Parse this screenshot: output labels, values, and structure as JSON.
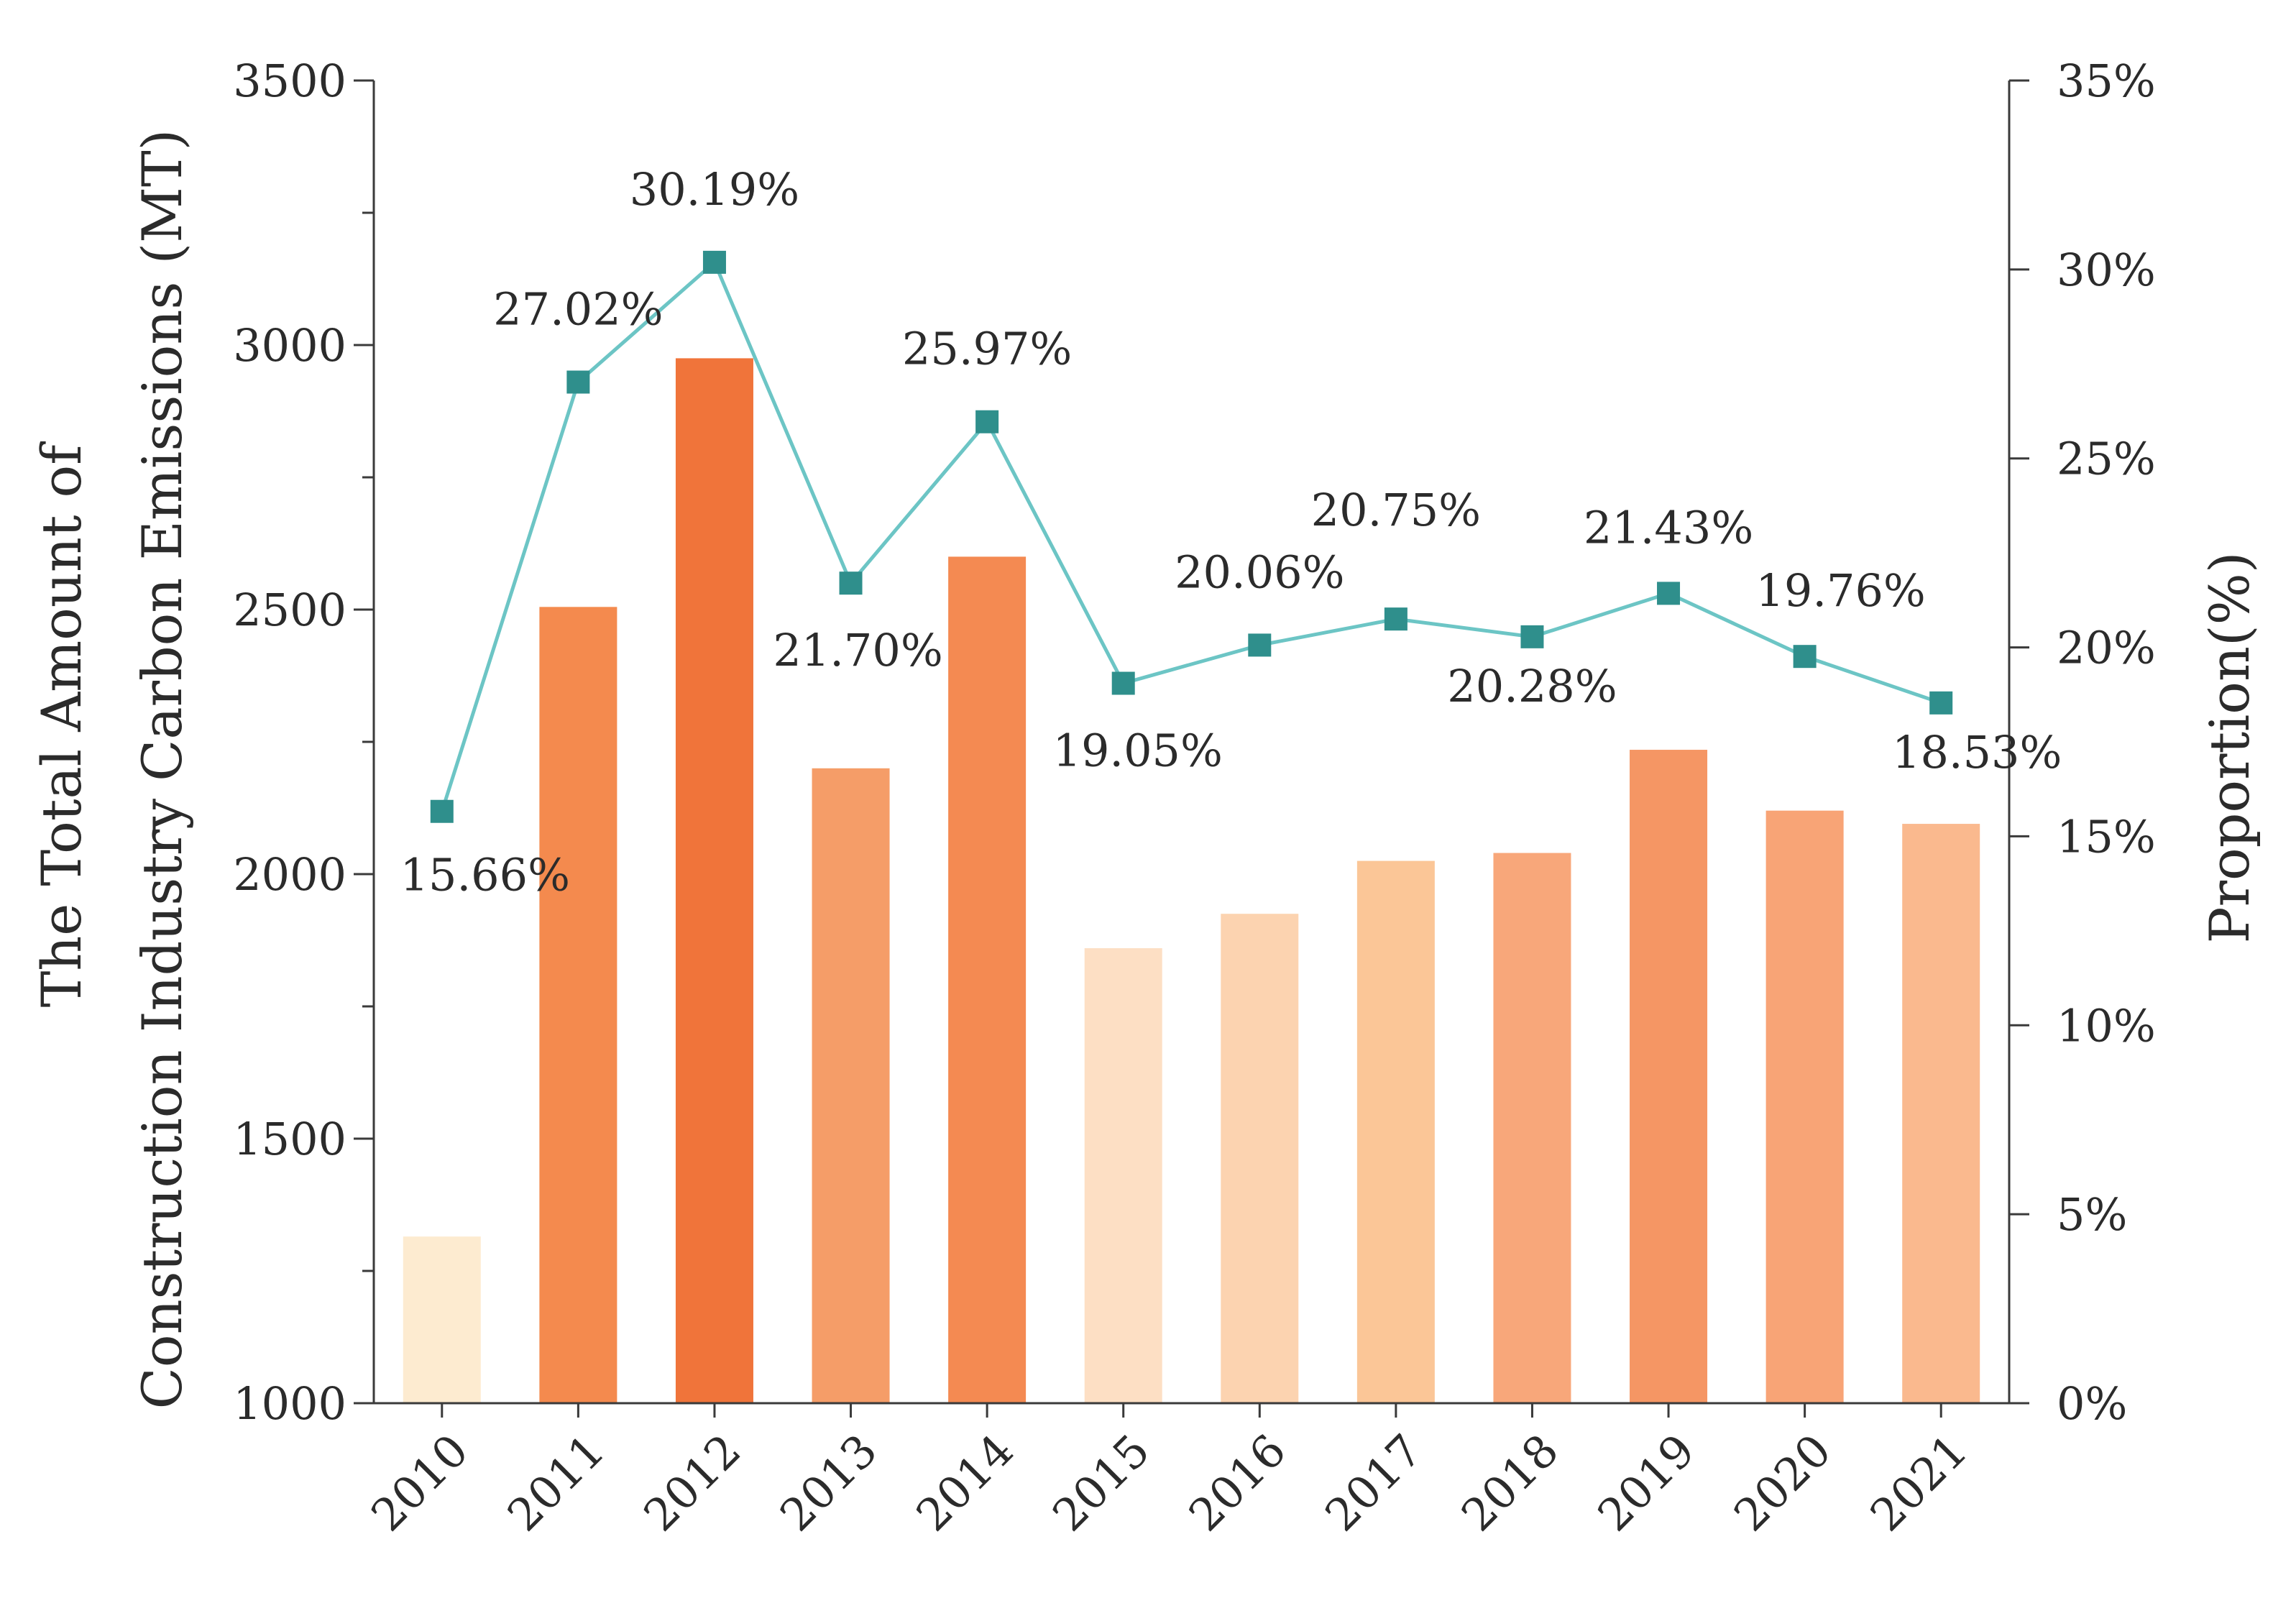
{
  "chart_data": {
    "type": "bar",
    "categories": [
      "2010",
      "2011",
      "2012",
      "2013",
      "2014",
      "2015",
      "2016",
      "2017",
      "2018",
      "2019",
      "2020",
      "2021"
    ],
    "series": [
      {
        "name": "Total carbon emissions (MT)",
        "type": "bar",
        "axis": "left",
        "values": [
          1315,
          2505,
          2975,
          2200,
          2600,
          1860,
          1925,
          2025,
          2040,
          2235,
          2120,
          2095
        ],
        "colors": [
          "#fdebd0",
          "#f48a4e",
          "#f0743a",
          "#f59d68",
          "#f48a52",
          "#fddfc4",
          "#fcd3b0",
          "#fbc697",
          "#f8a77a",
          "#f59664",
          "#f8a476",
          "#fab98e"
        ]
      },
      {
        "name": "Proportion (%)",
        "type": "line",
        "axis": "right",
        "values": [
          15.66,
          27.02,
          30.19,
          21.7,
          25.97,
          19.05,
          20.06,
          20.75,
          20.28,
          21.43,
          19.76,
          18.53
        ],
        "labels": [
          "15.66%",
          "27.02%",
          "30.19%",
          "21.70%",
          "25.97%",
          "19.05%",
          "20.06%",
          "20.75%",
          "20.28%",
          "21.43%",
          "19.76%",
          "18.53%"
        ],
        "line_color": "#6cc5c5",
        "marker_color": "#2f8f8c"
      }
    ],
    "ylabel_line1": "The Total Amount of",
    "ylabel_line2": "Construction Industry Carbon Emissions (MT)",
    "ylim": [
      1000,
      3500
    ],
    "y_ticks": [
      1000,
      1500,
      2000,
      2500,
      3000,
      3500
    ],
    "y_tick_labels": [
      "1000",
      "1500",
      "2000",
      "2500",
      "3000",
      "3500"
    ],
    "y2label": "Proportion(%)",
    "y2lim": [
      0,
      35
    ],
    "y2_ticks": [
      0,
      5,
      10,
      15,
      20,
      25,
      30,
      35
    ],
    "y2_tick_labels": [
      "0%",
      "5%",
      "10%",
      "15%",
      "20%",
      "25%",
      "30%",
      "35%"
    ],
    "grid": false
  }
}
